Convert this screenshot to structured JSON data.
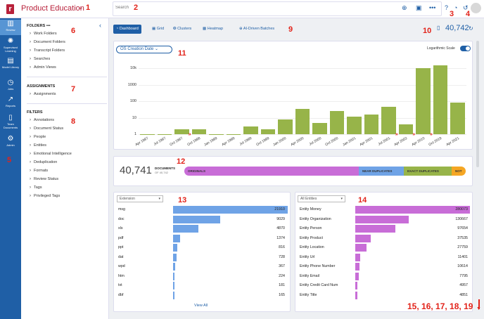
{
  "app": {
    "title": "Product Education"
  },
  "search": {
    "placeholder": "Search"
  },
  "markers": [
    "1",
    "2",
    "3",
    "4",
    "5",
    "6",
    "7",
    "8",
    "9",
    "10",
    "11",
    "12",
    "13",
    "14",
    "15, 16, 17, 18, 19"
  ],
  "rail": [
    {
      "label": "Review",
      "icon": "bar-chart-icon"
    },
    {
      "label": "Supervised Learning",
      "icon": "bulb-icon"
    },
    {
      "label": "Model Library",
      "icon": "books-icon"
    },
    {
      "label": "Jobs",
      "icon": "clock-icon"
    },
    {
      "label": "Reports",
      "icon": "line-chart-icon"
    },
    {
      "label": "Team Documents",
      "icon": "document-icon"
    },
    {
      "label": "Admin",
      "icon": "gear-icon"
    }
  ],
  "left": {
    "folders_title": "FOLDERS",
    "folders": [
      "Work Folders",
      "Document Folders",
      "Transcript Folders",
      "Searches",
      "Admin Views"
    ],
    "assignments_title": "ASSIGNMENTS",
    "assignments": [
      "Assignments"
    ],
    "filters_title": "FILTERS",
    "filters": [
      "Annotations",
      "Document Status",
      "People",
      "Entities",
      "Emotional Intelligence",
      "Deduplication",
      "Formats",
      "Review Status",
      "Tags",
      "Privileged Tags"
    ]
  },
  "tabs": [
    "Dashboard",
    "Grid",
    "Clusters",
    "Heatmap",
    "AI-Driven Batches"
  ],
  "doc_count": "40,742",
  "chart_data": [
    {
      "type": "bar",
      "title": "",
      "field_select": "OS Creation Date",
      "scale_label": "Logarithmic Scale",
      "log_scale": true,
      "y_ticks": [
        "10k",
        "1000",
        "100",
        "10",
        "1"
      ],
      "x_labels": [
        "Apr 1997",
        "Jul 1997",
        "Oct 1997",
        "Oct 1998",
        "Jan 1999",
        "Apr 1999",
        "Jul 1999",
        "Oct 1999",
        "Jan 2000",
        "Apr 2000",
        "Jul 2000",
        "Oct 2000",
        "Jan 2001",
        "Apr 2001",
        "Jul 2001",
        "Apr 2002",
        "Apr 2010",
        "Oct 2019",
        "Apr 2021"
      ],
      "values": [
        1,
        1,
        2,
        2,
        1,
        1,
        3,
        2,
        8,
        35,
        5,
        25,
        12,
        15,
        45,
        4,
        10000,
        15000,
        80
      ]
    },
    {
      "type": "bar",
      "total": "40,741",
      "total_label": "DOCUMENTS",
      "total_sub": "OF 40,742",
      "categories": [
        "ORIGINALS",
        "NEAR DUPLICATES",
        "EXACT DUPLICATES",
        "NOT"
      ],
      "colors": [
        "#c86dd7",
        "#6fa3e6",
        "#97b449",
        "#f5a623"
      ],
      "shares": [
        0.62,
        0.16,
        0.17,
        0.05
      ]
    },
    {
      "type": "bar",
      "select": "Extension",
      "categories": [
        "msg",
        "doc",
        "xls",
        "pdf",
        "ppt",
        "dat",
        "wpd",
        "htm",
        "txt",
        "dbf"
      ],
      "values": [
        21910,
        9029,
        4870,
        1374,
        816,
        728,
        367,
        224,
        181,
        165
      ],
      "color": "#6fa3e6",
      "footer": "View All"
    },
    {
      "type": "bar",
      "select": "All Entities",
      "categories": [
        "Entity Money",
        "Entity Organization",
        "Entity Person",
        "Entity Product",
        "Entity Location",
        "Entity Url",
        "Entity Phone Number",
        "Entity Email",
        "Entity Credit Card Num",
        "Entity Title"
      ],
      "values": [
        280073,
        130667,
        97654,
        37535,
        27759,
        11401,
        10614,
        7795,
        4957,
        4851
      ],
      "color": "#c86dd7"
    }
  ]
}
